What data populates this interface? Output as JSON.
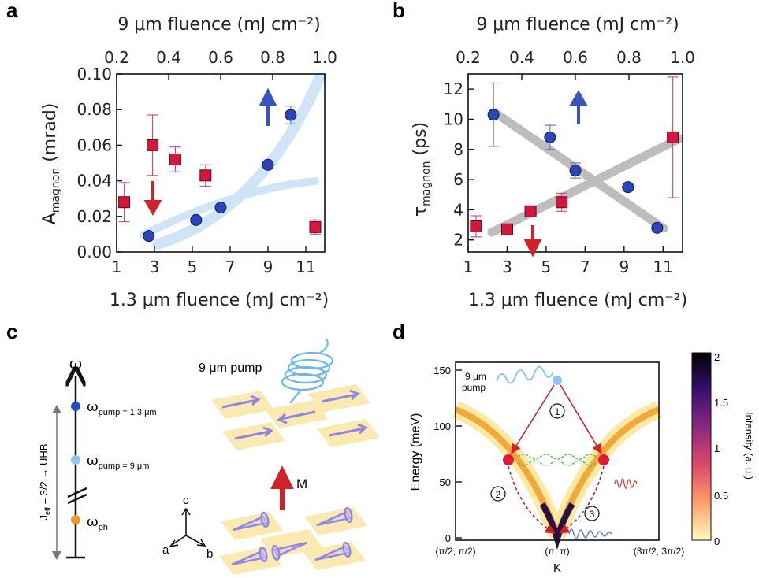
{
  "panels": {
    "a": {
      "letter": "a",
      "top_axis_label": "9 μm fluence (mJ cm⁻²)",
      "bottom_axis_label": "1.3 μm fluence (mJ cm⁻²)",
      "y_label_main": "A",
      "y_label_sub": "magnon",
      "y_label_unit": " (mrad)"
    },
    "b": {
      "letter": "b",
      "top_axis_label": "9 μm fluence (mJ cm⁻²)",
      "bottom_axis_label": "1.3 μm fluence (mJ cm⁻²)",
      "y_label_main": "τ",
      "y_label_sub": "magnon",
      "y_label_unit": " (ps)"
    },
    "c": {
      "letter": "c",
      "omega": "ω",
      "level_pump13": "ω",
      "level_pump13_sub": "pump = 1.3 μm",
      "level_pump9": "ω",
      "level_pump9_sub": "pump = 9 μm",
      "level_ph": "ω",
      "level_ph_sub": "ph",
      "jeff_label": "J",
      "jeff_sub": "eff",
      "jeff_rest": " = 3/2 → UHB",
      "pump_label": "9 μm pump",
      "m_label": "M",
      "axis_c": "c",
      "axis_a": "a",
      "axis_b": "b",
      "colors": {
        "pump13": "#1d4fc0",
        "pump9": "#8ec6f2",
        "ph": "#f0962a",
        "arrow_red": "#d1222a",
        "spin_purple": "#8f86de",
        "plaquette": "#fbe6a5"
      }
    },
    "d": {
      "letter": "d",
      "y_label": "Energy (meV)",
      "x_label": "K",
      "x_ticks": [
        "(π/2, π/2)",
        "(π, π)",
        "(3π/2, 3π/2)"
      ],
      "y_ticks": [
        "0",
        "50",
        "100",
        "150"
      ],
      "pump_label_1": "9 μm",
      "pump_label_2": "pump",
      "step1": "1",
      "step2": "2",
      "step3": "3",
      "colorbar_label": "Intensity (a. u.)",
      "colorbar_ticks": [
        "2",
        "1.5",
        "1",
        "0.5",
        "0"
      ]
    }
  },
  "chart_data": [
    {
      "panel": "a",
      "type": "scatter",
      "xlabel": "1.3 μm fluence (mJ cm⁻²)",
      "x2label": "9 μm fluence (mJ cm⁻²)",
      "ylabel": "Amagnon (mrad)",
      "xlim": [
        1,
        12
      ],
      "x2lim": [
        0.2,
        1.0
      ],
      "ylim": [
        0,
        0.1
      ],
      "x_ticks": [
        "1",
        "3",
        "5",
        "7",
        "9",
        "11"
      ],
      "x2_ticks": [
        "0.2",
        "0.4",
        "0.6",
        "0.8",
        "1.0"
      ],
      "y_ticks": [
        "0.00",
        "0.02",
        "0.04",
        "0.06",
        "0.08",
        "0.10"
      ],
      "series": [
        {
          "color": "#d4173a",
          "marker": "square",
          "points": [
            {
              "x": 1.4,
              "y": 0.028,
              "err": 0.011
            },
            {
              "x": 2.9,
              "y": 0.06,
              "err": 0.017
            },
            {
              "x": 4.1,
              "y": 0.052,
              "err": 0.007
            },
            {
              "x": 5.7,
              "y": 0.043,
              "err": 0.006
            },
            {
              "x": 11.5,
              "y": 0.014,
              "err": 0.004
            }
          ]
        },
        {
          "color": "#2c46b8",
          "marker": "circle",
          "points": [
            {
              "x": 2.7,
              "y": 0.009,
              "err": 0
            },
            {
              "x": 5.2,
              "y": 0.018,
              "err": 0
            },
            {
              "x": 6.5,
              "y": 0.025,
              "err": 0
            },
            {
              "x": 9.0,
              "y": 0.049,
              "err": 0
            },
            {
              "x": 10.2,
              "y": 0.077,
              "err": 0.005
            }
          ]
        }
      ]
    },
    {
      "panel": "b",
      "type": "scatter",
      "xlabel": "1.3 μm fluence (mJ cm⁻²)",
      "x2label": "9 μm fluence (mJ cm⁻²)",
      "ylabel": "τmagnon (ps)",
      "xlim": [
        1,
        12
      ],
      "x2lim": [
        0.2,
        1.0
      ],
      "ylim": [
        1.2,
        13
      ],
      "x_ticks": [
        "1",
        "3",
        "5",
        "7",
        "9",
        "11"
      ],
      "x2_ticks": [
        "0.2",
        "0.4",
        "0.6",
        "0.8",
        "1.0"
      ],
      "y_ticks": [
        "2",
        "4",
        "6",
        "8",
        "10",
        "12"
      ],
      "series": [
        {
          "color": "#d4173a",
          "marker": "square",
          "points": [
            {
              "x": 1.4,
              "y": 2.9,
              "err": 0.7
            },
            {
              "x": 3.0,
              "y": 2.7,
              "err": 0.3
            },
            {
              "x": 4.2,
              "y": 3.9,
              "err": 0.3
            },
            {
              "x": 5.8,
              "y": 4.5,
              "err": 0.6
            },
            {
              "x": 11.5,
              "y": 8.8,
              "err": 4.0
            }
          ]
        },
        {
          "color": "#2c46b8",
          "marker": "circle",
          "points": [
            {
              "x": 2.3,
              "y": 10.3,
              "err": 2.1
            },
            {
              "x": 5.2,
              "y": 8.8,
              "err": 0.8
            },
            {
              "x": 6.5,
              "y": 6.6,
              "err": 0.5
            },
            {
              "x": 9.2,
              "y": 5.5,
              "err": 0.2
            },
            {
              "x": 10.7,
              "y": 2.8,
              "err": 0.1
            }
          ]
        }
      ]
    }
  ]
}
